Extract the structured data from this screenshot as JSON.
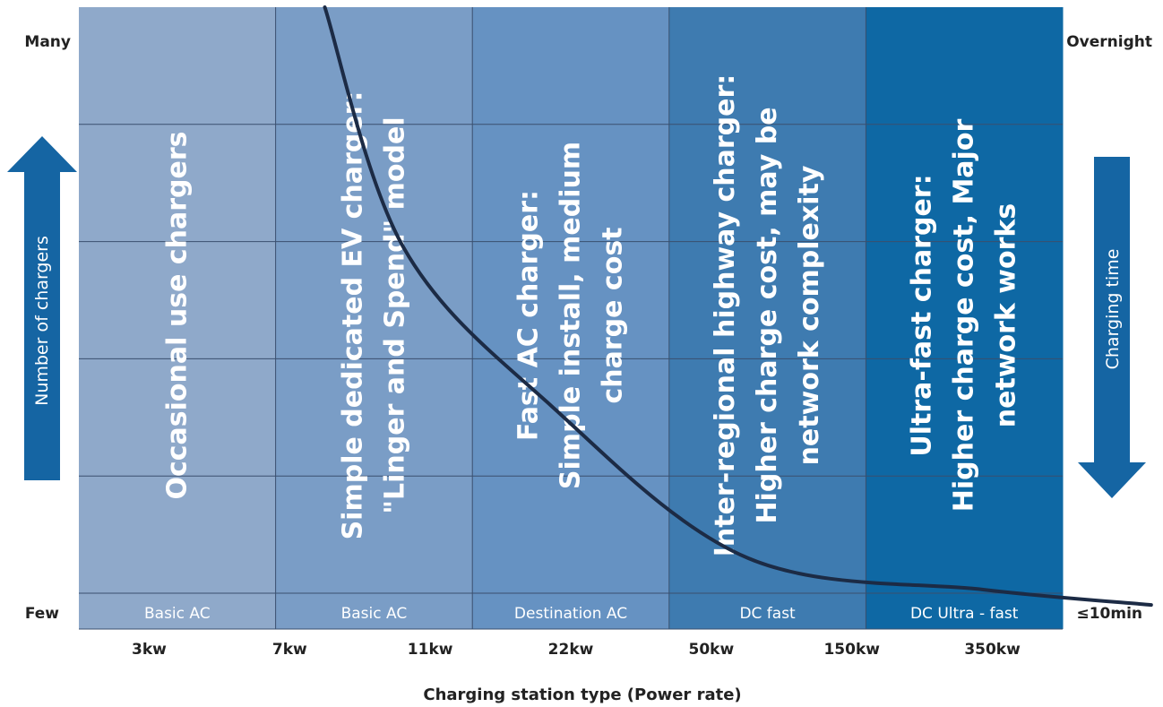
{
  "chart_data": {
    "type": "line",
    "xlabel": "Charging station type (Power rate)",
    "x_ticks": [
      "3kw",
      "7kw",
      "11kw",
      "22kw",
      "50kw",
      "150kw",
      "350kw"
    ],
    "left_axis": {
      "label": "Number of chargers",
      "top": "Many",
      "bottom": "Few"
    },
    "right_axis": {
      "label": "Charging time",
      "top": "Overnight",
      "bottom": "≤10min"
    },
    "bands": [
      {
        "label": "Basic AC",
        "color": "#8fa9ca",
        "text": [
          "Occasional use chargers"
        ]
      },
      {
        "label": "Basic AC",
        "color": "#7a9dc6",
        "text": [
          "Simple dedicated EV charger:",
          "\"Linger and Spend\"  model"
        ]
      },
      {
        "label": "Destination AC",
        "color": "#6692c2",
        "text": [
          "Fast AC charger:",
          "Simple install, medium",
          "charge cost"
        ]
      },
      {
        "label": "DC fast",
        "color": "#3e7bb0",
        "text": [
          "Inter-regional highway charger:",
          "Higher charge cost, may be",
          "network complexity"
        ]
      },
      {
        "label": "DC Ultra - fast",
        "color": "#0e68a4",
        "text": [
          "Ultra-fast charger:",
          "Higher charge cost, Major",
          "network works"
        ]
      }
    ],
    "grid": true,
    "series": [
      {
        "points": [
          [
            2.5,
            5.0
          ],
          [
            3.3,
            2.95
          ],
          [
            4.8,
            1.6
          ],
          [
            6.8,
            0.3
          ],
          [
            9.2,
            0.03
          ],
          [
            10.9,
            -0.1
          ]
        ]
      }
    ],
    "ylim": [
      0,
      5
    ],
    "colors": {
      "line": "#1c2b45",
      "arrow": "#1565a3",
      "grid": "#3a4f6e"
    }
  }
}
